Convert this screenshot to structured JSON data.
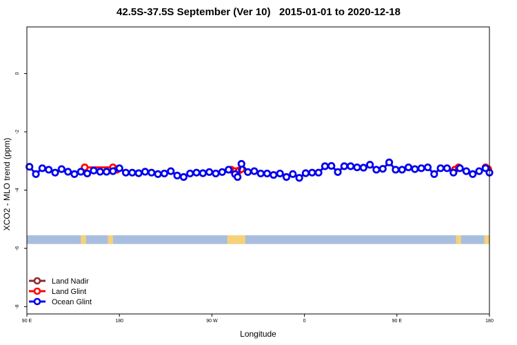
{
  "chart_data": {
    "type": "line",
    "title": "42.5S-37.5S September (Ver 10)   2015-01-01 to 2020-12-18",
    "xlabel": "Longitude",
    "ylabel": "XCO2 - MLO trend (ppm)",
    "xlim": [
      90,
      450
    ],
    "ylim": [
      -8.25,
      1.6
    ],
    "x_ticks": [
      {
        "value": 90,
        "label": "90 E"
      },
      {
        "value": 162,
        "label": "180"
      },
      {
        "value": 234,
        "label": "90 W"
      },
      {
        "value": 306,
        "label": "0"
      },
      {
        "value": 378,
        "label": "90 E"
      },
      {
        "value": 450,
        "label": "180"
      }
    ],
    "y_ticks": [
      {
        "value": 0,
        "label": "0"
      },
      {
        "value": -2,
        "label": "-2"
      },
      {
        "value": -4,
        "label": "-4"
      },
      {
        "value": -6,
        "label": "-6"
      },
      {
        "value": -8,
        "label": "-8"
      }
    ],
    "grid": false,
    "legend_position": "bottom-left",
    "land_strip": {
      "y_range": [
        -5.55,
        -5.85
      ],
      "ocean_color": "#a8bedf",
      "land_color": "#f5d27a",
      "land_segments": [
        [
          132,
          136
        ],
        [
          153,
          157
        ],
        [
          246,
          260
        ],
        [
          424,
          428
        ],
        [
          446,
          450
        ]
      ]
    },
    "series": [
      {
        "name": "Land Nadir",
        "color": "#8b2a2a",
        "x": [],
        "y": []
      },
      {
        "name": "Land Glint",
        "color": "#ff0000",
        "segments": [
          {
            "x": [
              135,
              157,
              160
            ],
            "y": [
              -3.22,
              -3.22,
              -3.3
            ]
          },
          {
            "x": [
              249,
              252,
              255,
              257
            ],
            "y": [
              -3.3,
              -3.35,
              -3.33,
              -3.28
            ]
          },
          {
            "x": [
              423,
              426
            ],
            "y": [
              -3.3,
              -3.22
            ]
          },
          {
            "x": [
              447,
              449
            ],
            "y": [
              -3.22,
              -3.28
            ]
          }
        ]
      },
      {
        "name": "Ocean Glint",
        "color": "#0000ee",
        "x": [
          92,
          97,
          102,
          107,
          112,
          117,
          122,
          127,
          132,
          137,
          142,
          147,
          152,
          157,
          162,
          167,
          172,
          177,
          182,
          187,
          192,
          197,
          202,
          207,
          212,
          217,
          222,
          227,
          232,
          237,
          242,
          247,
          252,
          254,
          257,
          262,
          267,
          272,
          277,
          282,
          287,
          292,
          297,
          302,
          307,
          312,
          317,
          322,
          327,
          332,
          337,
          342,
          347,
          352,
          357,
          362,
          367,
          372,
          377,
          382,
          387,
          392,
          397,
          402,
          407,
          412,
          417,
          422,
          427,
          432,
          437,
          442,
          447,
          450
        ],
        "y": [
          -3.2,
          -3.45,
          -3.25,
          -3.3,
          -3.4,
          -3.28,
          -3.37,
          -3.45,
          -3.37,
          -3.43,
          -3.33,
          -3.37,
          -3.37,
          -3.35,
          -3.25,
          -3.4,
          -3.4,
          -3.42,
          -3.37,
          -3.4,
          -3.45,
          -3.43,
          -3.35,
          -3.5,
          -3.55,
          -3.43,
          -3.4,
          -3.42,
          -3.38,
          -3.43,
          -3.38,
          -3.3,
          -3.45,
          -3.55,
          -3.1,
          -3.38,
          -3.35,
          -3.43,
          -3.43,
          -3.48,
          -3.43,
          -3.55,
          -3.45,
          -3.58,
          -3.42,
          -3.4,
          -3.4,
          -3.18,
          -3.17,
          -3.38,
          -3.18,
          -3.18,
          -3.22,
          -3.23,
          -3.13,
          -3.3,
          -3.27,
          -3.05,
          -3.3,
          -3.3,
          -3.22,
          -3.28,
          -3.25,
          -3.22,
          -3.45,
          -3.25,
          -3.25,
          -3.4,
          -3.25,
          -3.35,
          -3.45,
          -3.35,
          -3.25,
          -3.4
        ]
      }
    ]
  }
}
